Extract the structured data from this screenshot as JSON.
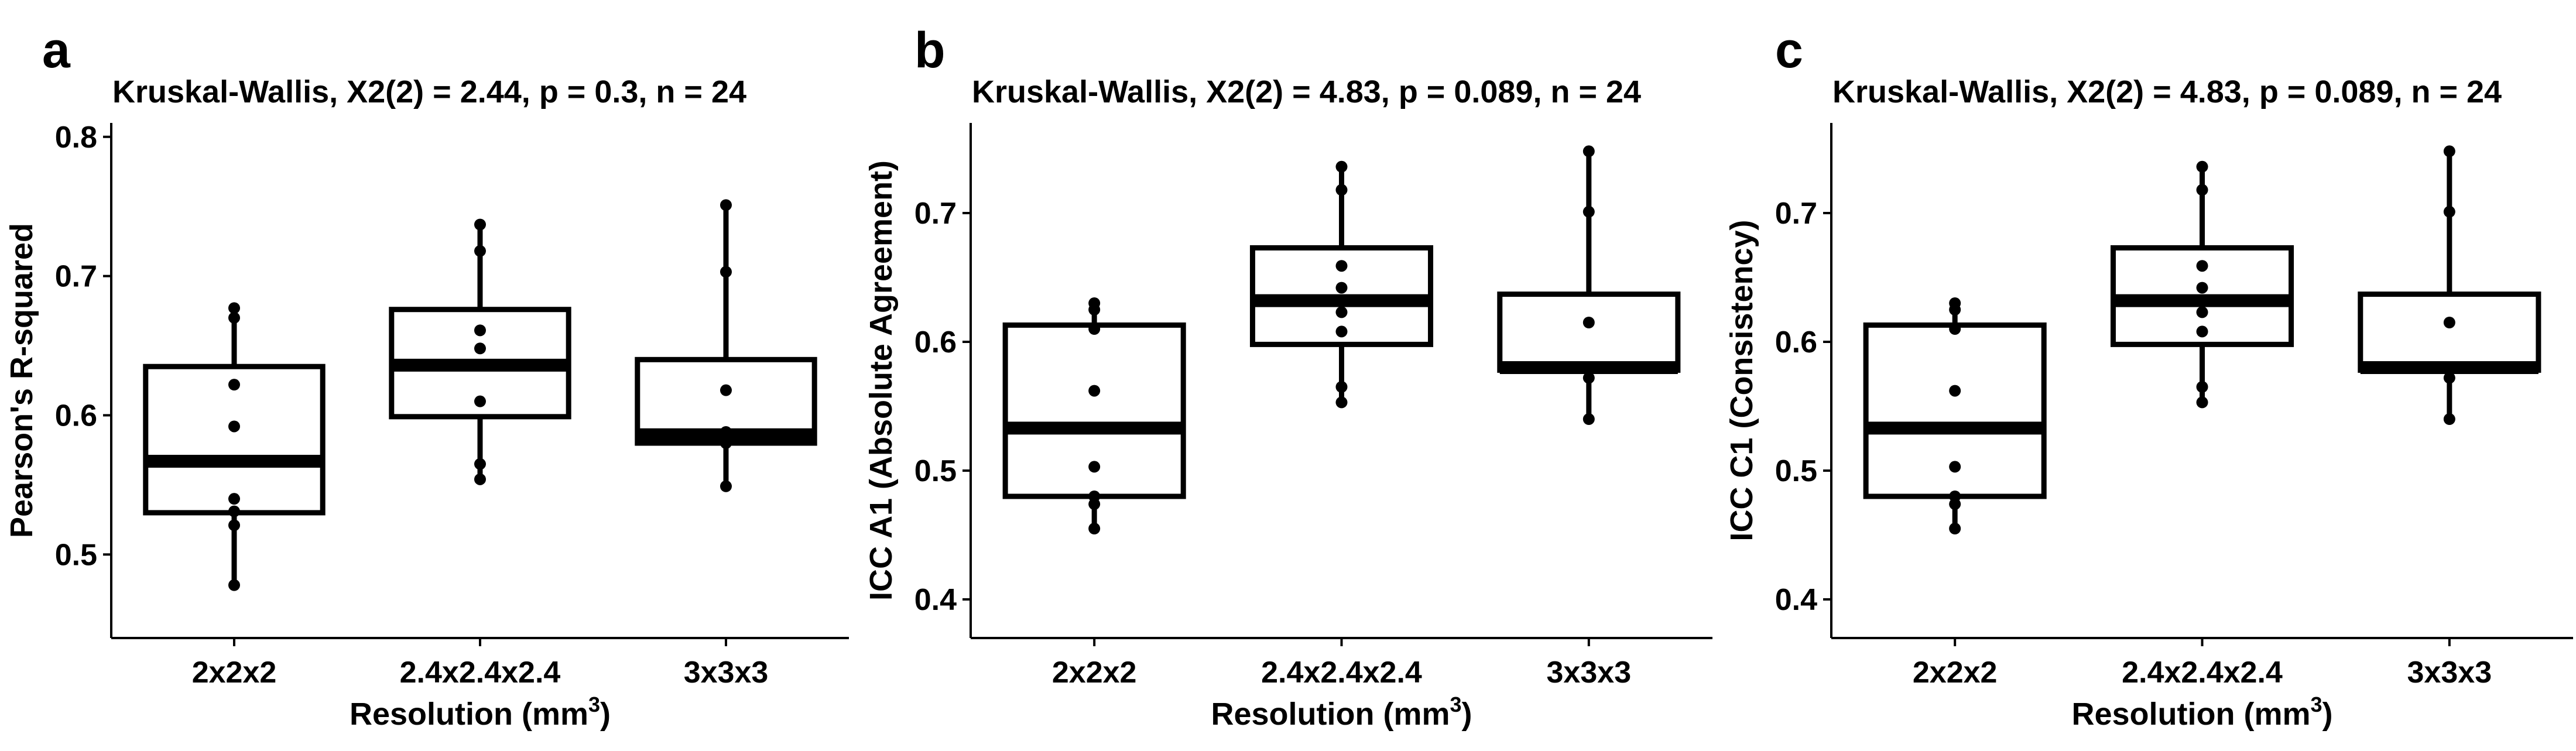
{
  "panel_labels": [
    "a",
    "b",
    "c"
  ],
  "chart_data": [
    {
      "type": "box",
      "panel": "a",
      "subtitle": "Kruskal-Wallis, X2(2) = 2.44, p = 0.3, n = 24",
      "ylabel": "Pearson's R-squared",
      "xlabel": "Resolution (mm",
      "xlabel_sup": "3",
      "xlabel_close": ")",
      "categories": [
        "2x2x2",
        "2.4x2.4x2.4",
        "3x3x3"
      ],
      "ylim": [
        0.44,
        0.81
      ],
      "yticks": [
        0.5,
        0.6,
        0.7,
        0.8
      ],
      "ytick_labels": [
        "0.5",
        "0.6",
        "0.7",
        "0.8"
      ],
      "boxes": [
        {
          "q1": 0.53,
          "median": 0.567,
          "q3": 0.635,
          "whisker_low": 0.478,
          "whisker_high": 0.677
        },
        {
          "q1": 0.599,
          "median": 0.636,
          "q3": 0.676,
          "whisker_low": 0.554,
          "whisker_high": 0.737
        },
        {
          "q1": 0.58,
          "median": 0.586,
          "q3": 0.64,
          "whisker_low": 0.549,
          "whisker_high": 0.751
        }
      ],
      "points": [
        [
          0.677,
          0.67,
          0.622,
          0.592,
          0.54,
          0.531,
          0.521,
          0.478
        ],
        [
          0.737,
          0.718,
          0.661,
          0.648,
          0.61,
          0.565,
          0.554
        ],
        [
          0.751,
          0.703,
          0.618,
          0.588,
          0.58,
          0.549
        ]
      ]
    },
    {
      "type": "box",
      "panel": "b",
      "subtitle": "Kruskal-Wallis, X2(2) = 4.83, p = 0.089, n = 24",
      "ylabel": "ICC A1 (Absolute Agreement)",
      "xlabel": "Resolution (mm",
      "xlabel_sup": "3",
      "xlabel_close": ")",
      "categories": [
        "2x2x2",
        "2.4x2.4x2.4",
        "3x3x3"
      ],
      "ylim": [
        0.37,
        0.77
      ],
      "yticks": [
        0.4,
        0.5,
        0.6,
        0.7
      ],
      "ytick_labels": [
        "0.4",
        "0.5",
        "0.6",
        "0.7"
      ],
      "boxes": [
        {
          "q1": 0.48,
          "median": 0.533,
          "q3": 0.613,
          "whisker_low": 0.455,
          "whisker_high": 0.63
        },
        {
          "q1": 0.598,
          "median": 0.632,
          "q3": 0.673,
          "whisker_low": 0.553,
          "whisker_high": 0.736
        },
        {
          "q1": 0.578,
          "median": 0.58,
          "q3": 0.637,
          "whisker_low": 0.54,
          "whisker_high": 0.748
        }
      ],
      "points": [
        [
          0.63,
          0.625,
          0.61,
          0.562,
          0.503,
          0.48,
          0.474,
          0.455
        ],
        [
          0.736,
          0.718,
          0.659,
          0.642,
          0.623,
          0.608,
          0.565,
          0.553
        ],
        [
          0.748,
          0.701,
          0.615,
          0.578,
          0.572,
          0.54
        ]
      ]
    },
    {
      "type": "box",
      "panel": "c",
      "subtitle": "Kruskal-Wallis, X2(2) = 4.83, p = 0.089, n = 24",
      "ylabel": "ICC C1 (Consistency)",
      "xlabel": "Resolution (mm",
      "xlabel_sup": "3",
      "xlabel_close": ")",
      "categories": [
        "2x2x2",
        "2.4x2.4x2.4",
        "3x3x3"
      ],
      "ylim": [
        0.37,
        0.77
      ],
      "yticks": [
        0.4,
        0.5,
        0.6,
        0.7
      ],
      "ytick_labels": [
        "0.4",
        "0.5",
        "0.6",
        "0.7"
      ],
      "boxes": [
        {
          "q1": 0.48,
          "median": 0.533,
          "q3": 0.613,
          "whisker_low": 0.455,
          "whisker_high": 0.63
        },
        {
          "q1": 0.598,
          "median": 0.632,
          "q3": 0.673,
          "whisker_low": 0.553,
          "whisker_high": 0.736
        },
        {
          "q1": 0.578,
          "median": 0.58,
          "q3": 0.637,
          "whisker_low": 0.54,
          "whisker_high": 0.748
        }
      ],
      "points": [
        [
          0.63,
          0.625,
          0.61,
          0.562,
          0.503,
          0.48,
          0.474,
          0.455
        ],
        [
          0.736,
          0.718,
          0.659,
          0.642,
          0.623,
          0.608,
          0.565,
          0.553
        ],
        [
          0.748,
          0.701,
          0.615,
          0.578,
          0.572,
          0.54
        ]
      ]
    }
  ]
}
